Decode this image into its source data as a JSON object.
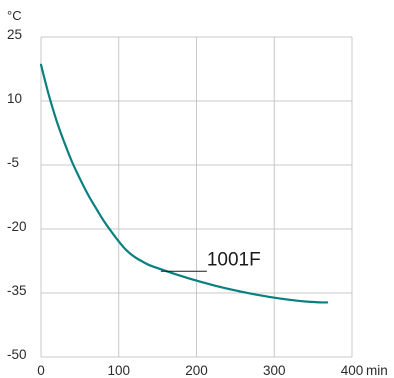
{
  "chart_data": {
    "type": "line",
    "title": "",
    "xlabel": "",
    "ylabel": "",
    "y_unit": "°C",
    "x_unit": "min",
    "xlim": [
      0,
      400
    ],
    "ylim": [
      -50,
      25
    ],
    "x_ticks": [
      {
        "value": 0,
        "label": "0"
      },
      {
        "value": 100,
        "label": "100"
      },
      {
        "value": 200,
        "label": "200"
      },
      {
        "value": 300,
        "label": "300"
      },
      {
        "value": 400,
        "label": "400"
      }
    ],
    "y_ticks": [
      {
        "value": 25,
        "label": "25"
      },
      {
        "value": 10,
        "label": "10"
      },
      {
        "value": -5,
        "label": "-5"
      },
      {
        "value": -20,
        "label": "-20"
      },
      {
        "value": -35,
        "label": "-35"
      },
      {
        "value": -50,
        "label": "-50"
      }
    ],
    "grid": true,
    "series": [
      {
        "name": "1001F",
        "color": "#0a7f7f",
        "x": [
          0,
          10,
          20,
          30,
          40,
          50,
          60,
          70,
          80,
          90,
          100,
          110,
          120,
          130,
          140,
          160,
          180,
          200,
          220,
          240,
          260,
          280,
          300,
          320,
          340,
          360,
          368
        ],
        "y": [
          18.5,
          11.4,
          5.4,
          0.3,
          -4.3,
          -8.2,
          -11.8,
          -14.9,
          -17.9,
          -20.5,
          -22.9,
          -25.0,
          -26.5,
          -27.6,
          -28.5,
          -29.8,
          -31.0,
          -32.1,
          -33.1,
          -34.0,
          -34.8,
          -35.5,
          -36.1,
          -36.6,
          -37.0,
          -37.2,
          -37.2
        ]
      }
    ],
    "annotation": {
      "text": "1001F",
      "x": 140,
      "y": -28.5
    }
  }
}
